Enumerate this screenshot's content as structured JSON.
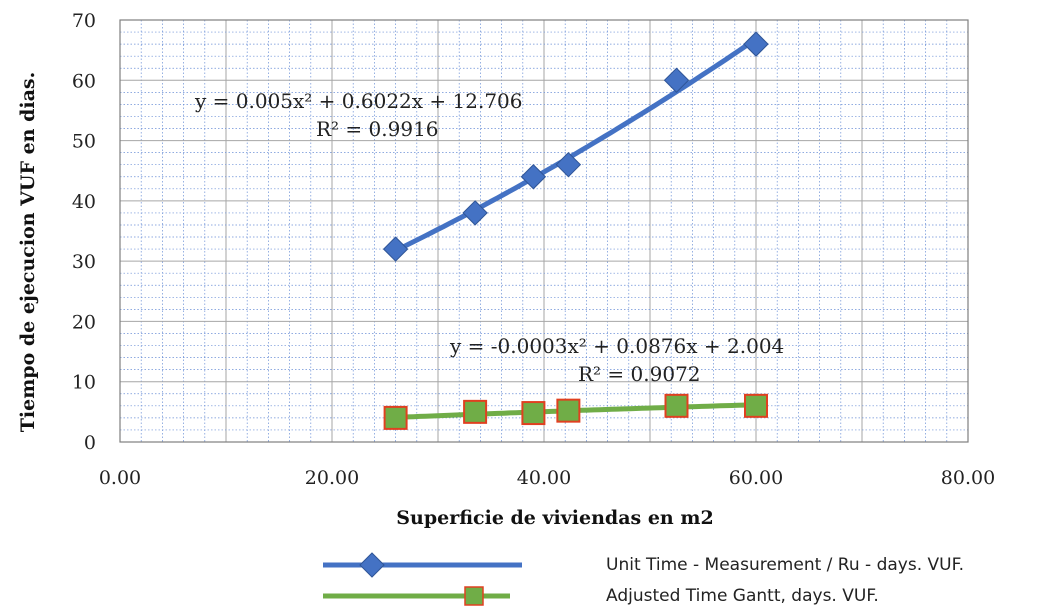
{
  "chart_data": {
    "type": "scatter",
    "xlabel": "Superficie de viviendas en m2",
    "ylabel": "Tiempo de ejecucion VUF en dias.",
    "xlim": [
      0,
      80
    ],
    "ylim": [
      0,
      70
    ],
    "x_ticks": [
      "0.00",
      "20.00",
      "40.00",
      "60.00",
      "80.00"
    ],
    "y_ticks": [
      "0",
      "10",
      "20",
      "30",
      "40",
      "50",
      "60",
      "70"
    ],
    "grid": true,
    "legend_position": "bottom-right",
    "series": [
      {
        "name": "Unit Time - Measurement / Ru - days. VUF.",
        "color": "#4472c4",
        "marker": "diamond",
        "x": [
          26,
          33.5,
          39,
          42.3,
          52.5,
          60
        ],
        "y": [
          32,
          38,
          44,
          46,
          60,
          66
        ],
        "trendline": {
          "type": "polynomial",
          "coefficients": [
            0.005,
            0.6022,
            12.706
          ],
          "x_range": [
            26,
            60
          ]
        },
        "equation": "y = 0.005x² + 0.6022x + 12.706",
        "r_squared": "R² = 0.9916"
      },
      {
        "name": "Adjusted Time Gantt, days. VUF.",
        "color": "#70ad47",
        "marker": "square",
        "marker_edge": "#e04020",
        "x": [
          26,
          33.5,
          39,
          42.3,
          52.5,
          60
        ],
        "y": [
          4,
          5,
          4.8,
          5.2,
          6,
          6
        ],
        "trendline": {
          "type": "polynomial",
          "coefficients": [
            -0.0003,
            0.0876,
            2.004
          ],
          "x_range": [
            26,
            60
          ]
        },
        "equation": "y = -0.0003x² + 0.0876x + 2.004",
        "r_squared": "R² = 0.9072"
      }
    ]
  }
}
